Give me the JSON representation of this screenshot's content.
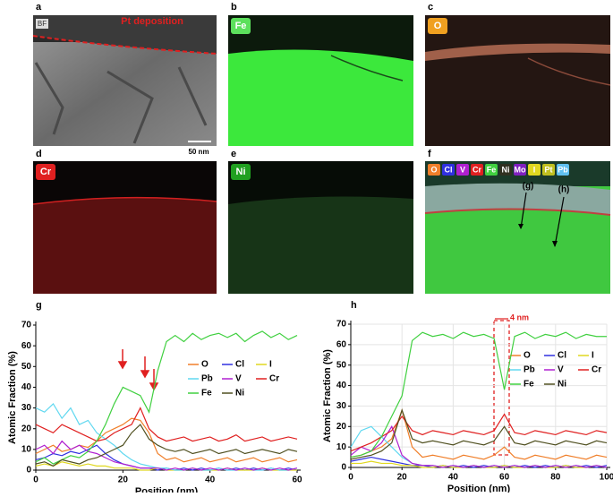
{
  "panels": [
    {
      "label": "a",
      "tag": "BF",
      "annotation": "Pt deposition",
      "scale_bar": "50 nm"
    },
    {
      "label": "b",
      "element": "Fe"
    },
    {
      "label": "c",
      "element": "O"
    },
    {
      "label": "d",
      "element": "Cr"
    },
    {
      "label": "e",
      "element": "Ni"
    },
    {
      "label": "f",
      "elements": [
        "O",
        "Cl",
        "V",
        "Cr",
        "Fe",
        "Ni",
        "Mo",
        "I",
        "Pt",
        "Pb"
      ],
      "annotations": [
        "(g)",
        "(h)"
      ]
    }
  ],
  "chart_data": [
    {
      "type": "line",
      "label": "g",
      "xlabel": "Position (nm)",
      "ylabel": "Atomic Fraction (%)",
      "xlim": [
        0,
        60
      ],
      "xticks": [
        0,
        20,
        40,
        60
      ],
      "ylim": [
        0,
        70
      ],
      "yticks": [
        0,
        10,
        20,
        30,
        40,
        50,
        60,
        70
      ],
      "grid": false,
      "x": [
        0,
        2,
        4,
        6,
        8,
        10,
        12,
        14,
        16,
        18,
        20,
        22,
        24,
        26,
        28,
        30,
        32,
        34,
        36,
        38,
        40,
        42,
        44,
        46,
        48,
        50,
        52,
        54,
        56,
        58,
        60
      ],
      "series": [
        {
          "name": "O",
          "color": "#f07f2a",
          "values": [
            8,
            10,
            12,
            9,
            10,
            12,
            11,
            14,
            18,
            20,
            22,
            25,
            24,
            18,
            8,
            5,
            6,
            4,
            5,
            6,
            4,
            5,
            6,
            4,
            5,
            6,
            4,
            5,
            6,
            4,
            5
          ]
        },
        {
          "name": "Cl",
          "color": "#3030e0",
          "values": [
            5,
            6,
            8,
            7,
            9,
            8,
            10,
            12,
            8,
            5,
            3,
            2,
            1,
            1,
            0,
            1,
            0,
            1,
            0,
            1,
            0,
            1,
            0,
            1,
            0,
            1,
            0,
            1,
            0,
            1,
            0
          ]
        },
        {
          "name": "I",
          "color": "#e0d820",
          "values": [
            2,
            3,
            2,
            4,
            3,
            2,
            3,
            2,
            2,
            1,
            1,
            1,
            0,
            0,
            1,
            0,
            0,
            0,
            1,
            0,
            0,
            0,
            1,
            0,
            0,
            0,
            1,
            0,
            0,
            0,
            0
          ]
        },
        {
          "name": "Pb",
          "color": "#60d8f0",
          "values": [
            30,
            28,
            32,
            25,
            30,
            22,
            24,
            18,
            15,
            12,
            8,
            5,
            3,
            2,
            1,
            1,
            0,
            0,
            1,
            0,
            0,
            1,
            0,
            0,
            1,
            0,
            0,
            1,
            0,
            0,
            1
          ]
        },
        {
          "name": "V",
          "color": "#b020d0",
          "values": [
            10,
            12,
            8,
            14,
            10,
            12,
            9,
            8,
            6,
            4,
            3,
            2,
            1,
            1,
            1,
            0,
            1,
            0,
            1,
            0,
            1,
            0,
            1,
            0,
            1,
            0,
            1,
            0,
            1,
            0,
            1
          ]
        },
        {
          "name": "Cr",
          "color": "#e02020",
          "values": [
            22,
            20,
            18,
            22,
            20,
            18,
            16,
            14,
            15,
            18,
            20,
            22,
            30,
            20,
            16,
            14,
            15,
            16,
            14,
            15,
            16,
            14,
            15,
            17,
            14,
            15,
            16,
            14,
            15,
            16,
            15
          ]
        },
        {
          "name": "Fe",
          "color": "#40d040",
          "values": [
            4,
            6,
            3,
            5,
            7,
            6,
            9,
            14,
            22,
            32,
            40,
            38,
            36,
            28,
            48,
            62,
            65,
            62,
            66,
            63,
            65,
            66,
            64,
            66,
            62,
            65,
            67,
            64,
            66,
            63,
            65
          ]
        },
        {
          "name": "Ni",
          "color": "#505020",
          "values": [
            3,
            4,
            2,
            5,
            4,
            3,
            5,
            6,
            8,
            10,
            12,
            18,
            22,
            15,
            12,
            10,
            9,
            10,
            8,
            9,
            10,
            8,
            9,
            10,
            8,
            9,
            10,
            9,
            8,
            10,
            9
          ]
        }
      ]
    },
    {
      "type": "line",
      "label": "h",
      "xlabel": "Position (nm)",
      "ylabel": "Atomic Fraction (%)",
      "annotation": "4 nm",
      "xlim": [
        0,
        100
      ],
      "xticks": [
        0,
        20,
        40,
        60,
        80,
        100
      ],
      "ylim": [
        0,
        70
      ],
      "yticks": [
        0,
        10,
        20,
        30,
        40,
        50,
        60,
        70
      ],
      "grid": true,
      "x": [
        0,
        4,
        8,
        12,
        16,
        20,
        24,
        28,
        32,
        36,
        40,
        44,
        48,
        52,
        56,
        60,
        64,
        68,
        72,
        76,
        80,
        84,
        88,
        92,
        96,
        100
      ],
      "series": [
        {
          "name": "O",
          "color": "#f07f2a",
          "values": [
            5,
            6,
            8,
            10,
            14,
            28,
            10,
            5,
            6,
            5,
            4,
            6,
            5,
            4,
            6,
            10,
            5,
            4,
            6,
            5,
            4,
            6,
            5,
            4,
            6,
            5
          ]
        },
        {
          "name": "Cl",
          "color": "#3030e0",
          "values": [
            3,
            4,
            5,
            4,
            3,
            2,
            1,
            1,
            0,
            1,
            0,
            1,
            0,
            1,
            0,
            1,
            0,
            1,
            0,
            1,
            0,
            1,
            0,
            1,
            0,
            1
          ]
        },
        {
          "name": "I",
          "color": "#e0d820",
          "values": [
            2,
            2,
            3,
            2,
            2,
            1,
            1,
            0,
            0,
            1,
            0,
            0,
            1,
            0,
            0,
            1,
            0,
            0,
            1,
            0,
            0,
            1,
            0,
            0,
            1,
            0
          ]
        },
        {
          "name": "Pb",
          "color": "#60d8f0",
          "values": [
            10,
            18,
            20,
            15,
            10,
            5,
            2,
            1,
            1,
            0,
            1,
            0,
            1,
            0,
            1,
            0,
            1,
            0,
            1,
            0,
            1,
            0,
            1,
            0,
            1,
            0
          ]
        },
        {
          "name": "V",
          "color": "#b020d0",
          "values": [
            6,
            10,
            8,
            12,
            20,
            6,
            2,
            1,
            1,
            0,
            1,
            0,
            1,
            0,
            1,
            0,
            1,
            0,
            1,
            0,
            1,
            0,
            1,
            0,
            1,
            0
          ]
        },
        {
          "name": "Cr",
          "color": "#e02020",
          "values": [
            8,
            10,
            12,
            15,
            18,
            25,
            18,
            16,
            18,
            17,
            16,
            18,
            17,
            16,
            18,
            26,
            17,
            16,
            18,
            17,
            16,
            18,
            17,
            16,
            18,
            17
          ]
        },
        {
          "name": "Fe",
          "color": "#40d040",
          "values": [
            5,
            6,
            8,
            15,
            25,
            35,
            62,
            66,
            64,
            65,
            63,
            66,
            64,
            65,
            63,
            38,
            64,
            66,
            63,
            65,
            64,
            66,
            63,
            65,
            64,
            64
          ]
        },
        {
          "name": "Ni",
          "color": "#505020",
          "values": [
            4,
            5,
            6,
            8,
            12,
            28,
            14,
            12,
            13,
            12,
            11,
            13,
            12,
            11,
            13,
            20,
            12,
            11,
            13,
            12,
            11,
            13,
            12,
            11,
            13,
            12
          ]
        }
      ]
    }
  ]
}
